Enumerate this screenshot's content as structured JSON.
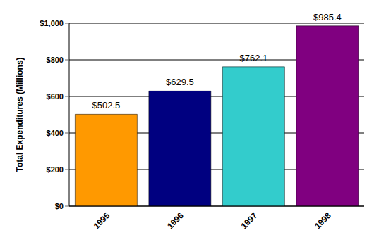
{
  "chart_data": {
    "type": "bar",
    "ylabel": "Total Expenditures (Millions)",
    "categories": [
      "1995",
      "1996",
      "1997",
      "1998"
    ],
    "values": [
      502.5,
      629.5,
      762.1,
      985.4
    ],
    "value_labels": [
      "$502.5",
      "$629.5",
      "$762.1",
      "$985.4"
    ],
    "colors": [
      "#ff9900",
      "#000080",
      "#33cccc",
      "#800080"
    ],
    "ylim": [
      0,
      1000
    ],
    "yticks": [
      {
        "value": 0,
        "label": "$0"
      },
      {
        "value": 200,
        "label": "$200"
      },
      {
        "value": 400,
        "label": "$400"
      },
      {
        "value": 600,
        "label": "$600"
      },
      {
        "value": 800,
        "label": "$800"
      },
      {
        "value": 1000,
        "label": "$1,000"
      }
    ],
    "grid": true,
    "data_labels": true
  }
}
